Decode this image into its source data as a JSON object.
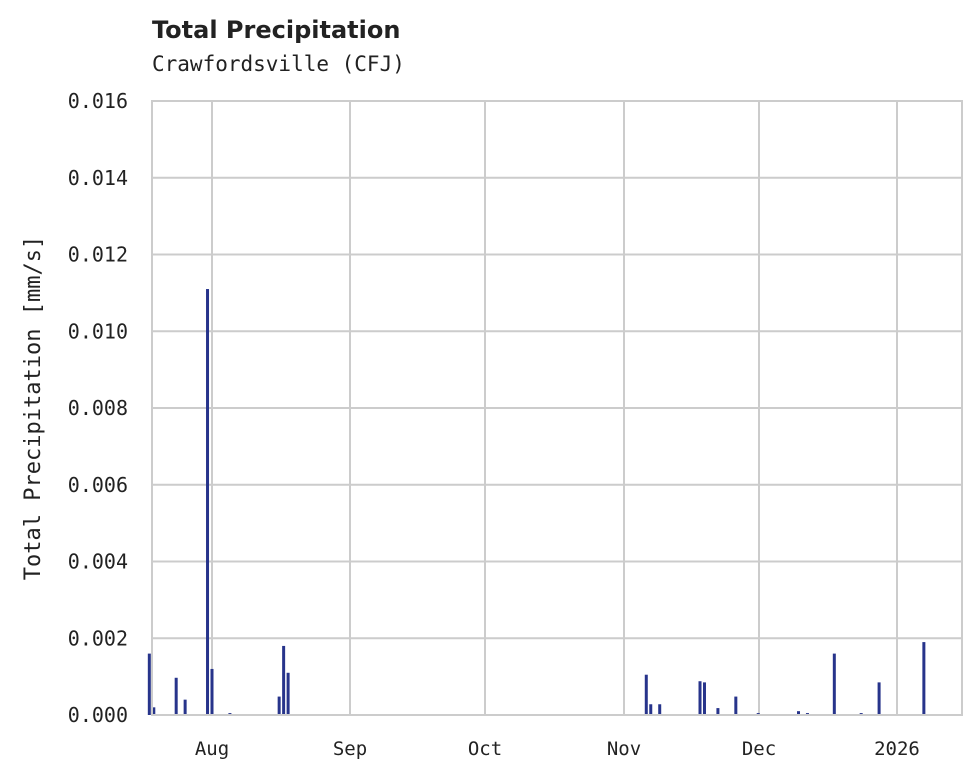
{
  "header": {
    "title": "Total Precipitation",
    "subtitle": "Crawfordsville (CFJ)"
  },
  "colors": {
    "bar": "#27348b",
    "grid": "#cccccc",
    "text": "#222222"
  },
  "chart_data": {
    "type": "bar",
    "title": "Total Precipitation",
    "subtitle": "Crawfordsville (CFJ)",
    "xlabel": "",
    "ylabel": "Total Precipitation [mm/s]",
    "ylim": [
      0,
      0.016
    ],
    "yticks": [
      "0.000",
      "0.002",
      "0.004",
      "0.006",
      "0.008",
      "0.010",
      "0.012",
      "0.014",
      "0.016"
    ],
    "xticks": [
      "Aug",
      "Sep",
      "Oct",
      "Nov",
      "Dec",
      "2026"
    ],
    "grid": true,
    "legend": null,
    "x": [
      "Jul 18",
      "Jul 19",
      "Jul 24",
      "Jul 26",
      "Jul 31",
      "Aug 1",
      "Aug 5",
      "Aug 16",
      "Aug 17",
      "Aug 18",
      "Nov 6",
      "Nov 7",
      "Nov 9",
      "Nov 18",
      "Nov 19",
      "Nov 22",
      "Nov 26",
      "Dec 1",
      "Dec 10",
      "Dec 12",
      "Dec 18",
      "Dec 24",
      "Dec 28",
      "Jan 7"
    ],
    "values": [
      0.0016,
      0.0002,
      0.00097,
      0.0004,
      0.0111,
      0.0012,
      5e-05,
      0.00048,
      0.0018,
      0.0011,
      0.00105,
      0.00028,
      0.00028,
      0.00088,
      0.00085,
      0.00018,
      0.00048,
      5e-05,
      0.0001,
      5e-05,
      0.0016,
      5e-05,
      0.00085,
      0.0019
    ]
  }
}
